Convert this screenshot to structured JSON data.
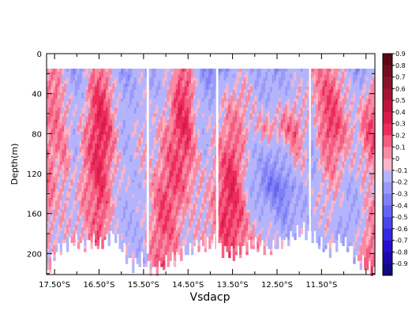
{
  "chart_data": {
    "type": "heatmap",
    "title": "Vsdacp",
    "ylabel": "Depth(m)",
    "xlabel": "",
    "x_tick_labels": [
      "17.50°S",
      "16.50°S",
      "15.50°S",
      "14.50°S",
      "13.50°S",
      "12.50°S",
      "11.50°S"
    ],
    "x_tick_values": [
      -17.5,
      -16.5,
      -15.5,
      -14.5,
      -13.5,
      -12.5,
      -11.5
    ],
    "xlim": [
      -17.68,
      -10.3
    ],
    "y_tick_labels": [
      "0",
      "40",
      "80",
      "120",
      "160",
      "200"
    ],
    "y_tick_values": [
      0,
      40,
      80,
      120,
      160,
      200
    ],
    "ylim": [
      0,
      221
    ],
    "y_reversed": true,
    "grid": false,
    "data_top_depth": 15,
    "colorbar": {
      "placement": "right",
      "labels": [
        "0.9",
        "0.8",
        "0.7",
        "0.6",
        "0.5",
        "0.4",
        "0.3",
        "0.2",
        "0.1",
        "0",
        "-0.1",
        "-0.2",
        "-0.3",
        "-0.4",
        "-0.5",
        "-0.6",
        "-0.7",
        "-0.8",
        "-0.9"
      ],
      "colors": [
        "#5a0a14",
        "#700f1e",
        "#8a1228",
        "#a41432",
        "#be163c",
        "#d81c48",
        "#ec2c5c",
        "#f45c80",
        "#f88aa4",
        "#fcb4c6",
        "#b4b4fc",
        "#9a9afa",
        "#8080f6",
        "#6464f2",
        "#4a46ec",
        "#3428e4",
        "#2410cc",
        "#1c08a8",
        "#100a80"
      ]
    },
    "columns": [
      {
        "lat": -17.65,
        "bottom": 215,
        "values": [
          0.15,
          0.1,
          0.1,
          0.15,
          0.15,
          0.1,
          0.0
        ]
      },
      {
        "lat": -17.45,
        "bottom": 195,
        "values": [
          0.1,
          0.2,
          0.15,
          0.1,
          0.05,
          0.0,
          0.0
        ]
      },
      {
        "lat": -17.25,
        "bottom": 190,
        "values": [
          -0.1,
          0.0,
          0.1,
          0.1,
          0.05,
          0.0,
          -0.05
        ]
      },
      {
        "lat": -17.05,
        "bottom": 185,
        "values": [
          -0.2,
          -0.1,
          -0.1,
          -0.1,
          -0.05,
          0.0,
          0.05
        ]
      },
      {
        "lat": -16.85,
        "bottom": 190,
        "values": [
          -0.15,
          -0.05,
          0.05,
          0.1,
          0.1,
          0.05,
          0.05
        ]
      },
      {
        "lat": -16.65,
        "bottom": 185,
        "values": [
          0.1,
          0.2,
          0.25,
          0.25,
          0.2,
          0.15,
          0.1
        ]
      },
      {
        "lat": -16.5,
        "bottom": 190,
        "values": [
          0.2,
          0.3,
          0.35,
          0.35,
          0.3,
          0.25,
          0.15
        ]
      },
      {
        "lat": -16.35,
        "bottom": 185,
        "values": [
          0.1,
          0.25,
          0.3,
          0.25,
          0.2,
          0.15,
          0.1
        ]
      },
      {
        "lat": -16.15,
        "bottom": 180,
        "values": [
          -0.1,
          0.0,
          0.1,
          0.05,
          0.0,
          -0.05,
          -0.1
        ]
      },
      {
        "lat": -15.95,
        "bottom": 195,
        "values": [
          -0.2,
          -0.15,
          -0.1,
          -0.1,
          -0.05,
          -0.1,
          -0.1
        ]
      },
      {
        "lat": -15.75,
        "bottom": 210,
        "values": [
          -0.15,
          -0.1,
          -0.1,
          -0.05,
          -0.1,
          -0.1,
          -0.05
        ]
      },
      {
        "lat": -15.55,
        "bottom": 205,
        "values": [
          -0.1,
          -0.05,
          0.0,
          0.0,
          -0.05,
          -0.1,
          -0.1
        ]
      },
      {
        "lat": -15.3,
        "bottom": 215,
        "values": [
          -0.15,
          -0.1,
          -0.05,
          0.0,
          0.05,
          0.1,
          0.1
        ]
      },
      {
        "lat": -15.1,
        "bottom": 210,
        "values": [
          -0.1,
          -0.05,
          0.05,
          0.1,
          0.2,
          0.25,
          0.2
        ]
      },
      {
        "lat": -14.9,
        "bottom": 205,
        "values": [
          -0.05,
          0.05,
          0.15,
          0.2,
          0.25,
          0.2,
          0.15
        ]
      },
      {
        "lat": -14.7,
        "bottom": 200,
        "values": [
          0.2,
          0.3,
          0.3,
          0.25,
          0.2,
          0.1,
          0.05
        ]
      },
      {
        "lat": -14.5,
        "bottom": 195,
        "values": [
          0.15,
          0.25,
          0.3,
          0.2,
          0.1,
          0.0,
          -0.05
        ]
      },
      {
        "lat": -14.3,
        "bottom": 190,
        "values": [
          -0.1,
          -0.05,
          0.0,
          0.05,
          0.05,
          0.0,
          0.0
        ]
      },
      {
        "lat": -14.1,
        "bottom": 190,
        "values": [
          -0.25,
          -0.15,
          -0.1,
          -0.05,
          0.0,
          0.05,
          0.05
        ]
      },
      {
        "lat": -13.9,
        "bottom": 185,
        "values": [
          -0.3,
          -0.1,
          0.0,
          0.05,
          0.1,
          0.1,
          0.05
        ]
      },
      {
        "lat": -13.7,
        "bottom": 195,
        "values": [
          -0.2,
          0.0,
          0.1,
          0.2,
          0.25,
          0.3,
          0.2
        ]
      },
      {
        "lat": -13.5,
        "bottom": 200,
        "values": [
          -0.1,
          0.05,
          0.15,
          0.3,
          0.35,
          0.3,
          0.2
        ]
      },
      {
        "lat": -13.3,
        "bottom": 195,
        "values": [
          -0.05,
          0.1,
          0.1,
          0.1,
          0.15,
          0.2,
          0.15
        ]
      },
      {
        "lat": -13.1,
        "bottom": 190,
        "values": [
          -0.1,
          0.0,
          0.0,
          -0.1,
          -0.1,
          0.0,
          0.1
        ]
      },
      {
        "lat": -12.9,
        "bottom": 190,
        "values": [
          -0.15,
          -0.1,
          0.05,
          -0.15,
          -0.2,
          -0.05,
          0.1
        ]
      },
      {
        "lat": -12.7,
        "bottom": 195,
        "values": [
          -0.15,
          -0.1,
          0.1,
          -0.2,
          -0.3,
          -0.1,
          0.05
        ]
      },
      {
        "lat": -12.5,
        "bottom": 190,
        "values": [
          -0.2,
          -0.1,
          0.1,
          -0.2,
          -0.35,
          -0.15,
          0.0
        ]
      },
      {
        "lat": -12.3,
        "bottom": 185,
        "values": [
          -0.15,
          -0.05,
          0.15,
          -0.1,
          -0.3,
          -0.2,
          -0.05
        ]
      },
      {
        "lat": -12.1,
        "bottom": 180,
        "values": [
          -0.1,
          0.0,
          0.2,
          0.05,
          -0.15,
          -0.15,
          -0.05
        ]
      },
      {
        "lat": -11.9,
        "bottom": 175,
        "values": [
          -0.1,
          -0.05,
          0.05,
          0.0,
          -0.1,
          -0.1,
          -0.05
        ]
      },
      {
        "lat": -11.7,
        "bottom": 180,
        "values": [
          0.1,
          0.05,
          -0.1,
          -0.15,
          -0.1,
          -0.05,
          0.0
        ]
      },
      {
        "lat": -11.5,
        "bottom": 190,
        "values": [
          0.1,
          0.2,
          0.15,
          0.05,
          0.0,
          -0.05,
          -0.1
        ]
      },
      {
        "lat": -11.3,
        "bottom": 195,
        "values": [
          0.15,
          0.25,
          0.3,
          0.15,
          0.05,
          0.0,
          -0.1
        ]
      },
      {
        "lat": -11.1,
        "bottom": 185,
        "values": [
          0.05,
          0.15,
          0.2,
          0.1,
          0.0,
          -0.1,
          -0.15
        ]
      },
      {
        "lat": -10.9,
        "bottom": 190,
        "values": [
          -0.1,
          0.0,
          0.1,
          0.0,
          -0.1,
          -0.15,
          -0.1
        ]
      },
      {
        "lat": -10.7,
        "bottom": 205,
        "values": [
          -0.2,
          -0.1,
          0.0,
          -0.05,
          -0.1,
          -0.1,
          -0.05
        ]
      },
      {
        "lat": -10.5,
        "bottom": 210,
        "values": [
          -0.15,
          0.1,
          0.2,
          0.1,
          0.0,
          0.05,
          0.15
        ]
      },
      {
        "lat": -10.35,
        "bottom": 215,
        "values": [
          -0.1,
          0.15,
          0.25,
          0.15,
          0.05,
          0.1,
          0.2
        ]
      }
    ],
    "column_depths": [
      15,
      45,
      75,
      105,
      135,
      165,
      200
    ]
  }
}
